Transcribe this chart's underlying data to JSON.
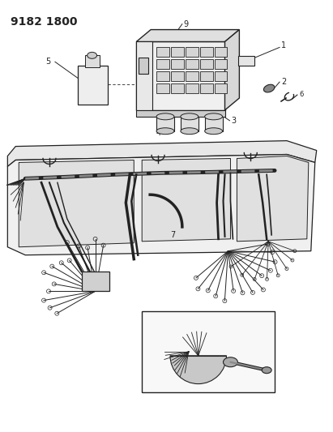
{
  "title": "9182 1800",
  "bg_color": "#ffffff",
  "line_color": "#222222",
  "title_fontsize": 10,
  "label_fontsize": 7,
  "fig_width": 4.11,
  "fig_height": 5.33,
  "dpi": 100
}
